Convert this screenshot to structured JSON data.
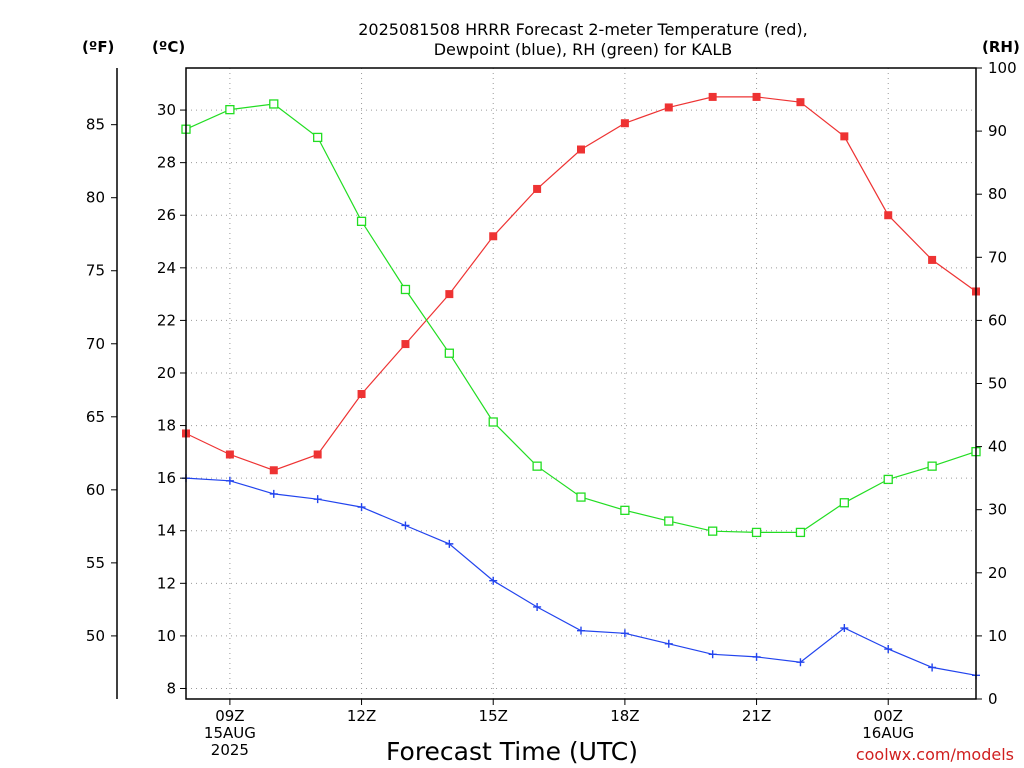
{
  "chart_data": {
    "type": "line",
    "title_line1": "2025081508 HRRR Forecast 2-meter Temperature (red),",
    "title_line2": "Dewpoint (blue), RH (green) for KALB",
    "xlabel": "Forecast Time (UTC)",
    "unit_labels": {
      "fahrenheit": "(ºF)",
      "celsius": "(ºC)",
      "rh": "(RH)"
    },
    "credit": "coolwx.com/models",
    "x_hours": [
      8,
      9,
      10,
      11,
      12,
      13,
      14,
      15,
      16,
      17,
      18,
      19,
      20,
      21,
      22,
      23,
      24,
      25,
      26
    ],
    "x_range": [
      8,
      26
    ],
    "x_ticks": [
      {
        "hour": 9,
        "lines": [
          "09Z",
          "15AUG",
          "2025"
        ]
      },
      {
        "hour": 12,
        "lines": [
          "12Z"
        ]
      },
      {
        "hour": 15,
        "lines": [
          "15Z"
        ]
      },
      {
        "hour": 18,
        "lines": [
          "18Z"
        ]
      },
      {
        "hour": 21,
        "lines": [
          "21Z"
        ]
      },
      {
        "hour": 24,
        "lines": [
          "00Z",
          "16AUG"
        ]
      }
    ],
    "celsius_axis": {
      "range": [
        7.6,
        31.6
      ],
      "ticks": [
        8,
        10,
        12,
        14,
        16,
        18,
        20,
        22,
        24,
        26,
        28,
        30
      ]
    },
    "fahrenheit_axis": {
      "range": [
        45.68,
        88.88
      ],
      "ticks": [
        50,
        55,
        60,
        65,
        70,
        75,
        80,
        85
      ]
    },
    "rh_axis": {
      "range": [
        0,
        100
      ],
      "ticks": [
        0,
        10,
        20,
        30,
        40,
        50,
        60,
        70,
        80,
        90,
        100
      ]
    },
    "grid": true,
    "series": [
      {
        "name": "2-meter Temperature",
        "axis": "celsius",
        "color": "#ee3333",
        "marker": "filled-square",
        "values": [
          17.7,
          16.9,
          16.3,
          16.9,
          19.2,
          21.1,
          23.0,
          25.2,
          27.0,
          28.5,
          29.5,
          30.1,
          30.5,
          30.5,
          30.3,
          29.0,
          26.0,
          24.3,
          23.1
        ]
      },
      {
        "name": "Dewpoint",
        "axis": "celsius",
        "color": "#2244ee",
        "marker": "plus",
        "values": [
          16.0,
          15.9,
          15.4,
          15.2,
          14.9,
          14.2,
          13.5,
          12.1,
          11.1,
          10.2,
          10.1,
          9.7,
          9.3,
          9.2,
          9.0,
          10.3,
          9.5,
          8.8,
          8.5
        ]
      },
      {
        "name": "RH",
        "axis": "rh",
        "color": "#22dd22",
        "marker": "open-square",
        "values": [
          90.3,
          93.4,
          94.3,
          89.0,
          75.7,
          64.9,
          54.8,
          43.9,
          36.9,
          32.0,
          29.9,
          28.2,
          26.6,
          26.4,
          26.4,
          31.1,
          34.8,
          36.9,
          39.2
        ]
      }
    ]
  }
}
